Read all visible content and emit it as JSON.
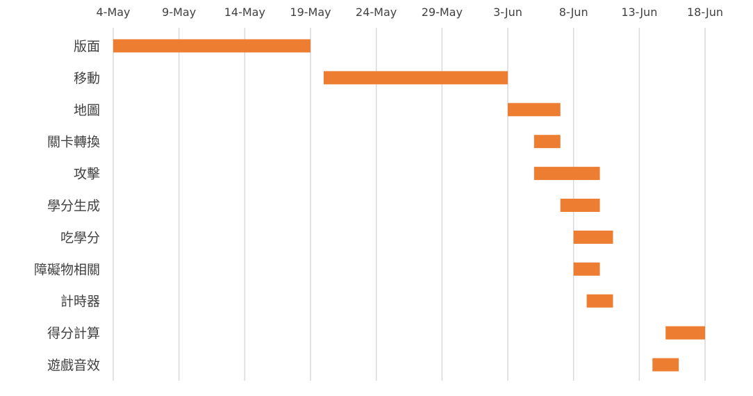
{
  "chart_data": {
    "type": "bar",
    "orientation": "horizontal-gantt",
    "title": "",
    "xlabel": "",
    "ylabel": "",
    "x_axis_position": "top",
    "grid": true,
    "bar_color": "#ED7D31",
    "x_ticks": [
      "4-May",
      "9-May",
      "14-May",
      "19-May",
      "24-May",
      "29-May",
      "3-Jun",
      "8-Jun",
      "13-Jun",
      "18-Jun"
    ],
    "x_tick_dates": [
      "2024-05-04",
      "2024-05-09",
      "2024-05-14",
      "2024-05-19",
      "2024-05-24",
      "2024-05-29",
      "2024-06-03",
      "2024-06-08",
      "2024-06-13",
      "2024-06-18"
    ],
    "xlim": [
      "2024-05-04",
      "2024-06-18"
    ],
    "tasks": [
      {
        "name": "版面",
        "start": "2024-05-04",
        "end": "2024-05-19"
      },
      {
        "name": "移動",
        "start": "2024-05-20",
        "end": "2024-06-03"
      },
      {
        "name": "地圖",
        "start": "2024-06-03",
        "end": "2024-06-07"
      },
      {
        "name": "關卡轉換",
        "start": "2024-06-05",
        "end": "2024-06-07"
      },
      {
        "name": "攻擊",
        "start": "2024-06-05",
        "end": "2024-06-10"
      },
      {
        "name": "學分生成",
        "start": "2024-06-07",
        "end": "2024-06-10"
      },
      {
        "name": "吃學分",
        "start": "2024-06-08",
        "end": "2024-06-11"
      },
      {
        "name": "障礙物相關",
        "start": "2024-06-08",
        "end": "2024-06-10"
      },
      {
        "name": "計時器",
        "start": "2024-06-09",
        "end": "2024-06-11"
      },
      {
        "name": "得分計算",
        "start": "2024-06-15",
        "end": "2024-06-18"
      },
      {
        "name": "遊戲音效",
        "start": "2024-06-14",
        "end": "2024-06-16"
      }
    ]
  }
}
